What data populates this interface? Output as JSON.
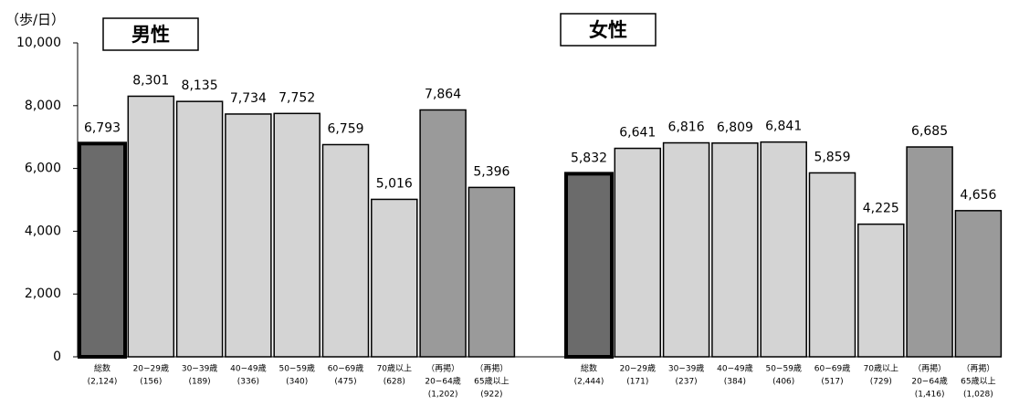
{
  "chart_data": {
    "type": "bar",
    "y_axis_label": "（歩/日）",
    "ylim": [
      0,
      10000
    ],
    "yticks": [
      0,
      {
        "value": 2000,
        "label": "2,000"
      },
      {
        "value": 4000,
        "label": "4,000"
      },
      {
        "value": 6000,
        "label": "6,000"
      },
      {
        "value": 8000,
        "label": "8,000"
      },
      {
        "value": 10000,
        "label": "10,000"
      }
    ],
    "groups": [
      {
        "name": "男性",
        "categories": [
          [
            "総数",
            "(2,124)"
          ],
          [
            "20−29歳",
            "(156)"
          ],
          [
            "30−39歳",
            "(189)"
          ],
          [
            "40−49歳",
            "(336)"
          ],
          [
            "50−59歳",
            "(340)"
          ],
          [
            "60−69歳",
            "(475)"
          ],
          [
            "70歳以上",
            "(628)"
          ],
          [
            "（再掲）",
            "20−64歳",
            "(1,202)"
          ],
          [
            "（再掲）",
            "65歳以上",
            "(922)"
          ]
        ],
        "values": [
          6793,
          8301,
          8135,
          7734,
          7752,
          6759,
          5016,
          7864,
          5396
        ],
        "value_labels": [
          "6,793",
          "8,301",
          "8,135",
          "7,734",
          "7,752",
          "6,759",
          "5,016",
          "7,864",
          "5,396"
        ],
        "colors": [
          "#6b6b6b",
          "#d4d4d4",
          "#d4d4d4",
          "#d4d4d4",
          "#d4d4d4",
          "#d4d4d4",
          "#d4d4d4",
          "#9a9a9a",
          "#9a9a9a"
        ]
      },
      {
        "name": "女性",
        "categories": [
          [
            "総数",
            "(2,444)"
          ],
          [
            "20−29歳",
            "(171)"
          ],
          [
            "30−39歳",
            "(237)"
          ],
          [
            "40−49歳",
            "(384)"
          ],
          [
            "50−59歳",
            "(406)"
          ],
          [
            "60−69歳",
            "(517)"
          ],
          [
            "70歳以上",
            "(729)"
          ],
          [
            "（再掲）",
            "20−64歳",
            "(1,416)"
          ],
          [
            "（再掲）",
            "65歳以上",
            "(1,028)"
          ]
        ],
        "values": [
          5832,
          6641,
          6816,
          6809,
          6841,
          5859,
          4225,
          6685,
          4656
        ],
        "value_labels": [
          "5,832",
          "6,641",
          "6,816",
          "6,809",
          "6,841",
          "5,859",
          "4,225",
          "6,685",
          "4,656"
        ],
        "colors": [
          "#6b6b6b",
          "#d4d4d4",
          "#d4d4d4",
          "#d4d4d4",
          "#d4d4d4",
          "#d4d4d4",
          "#d4d4d4",
          "#9a9a9a",
          "#9a9a9a"
        ]
      }
    ]
  }
}
